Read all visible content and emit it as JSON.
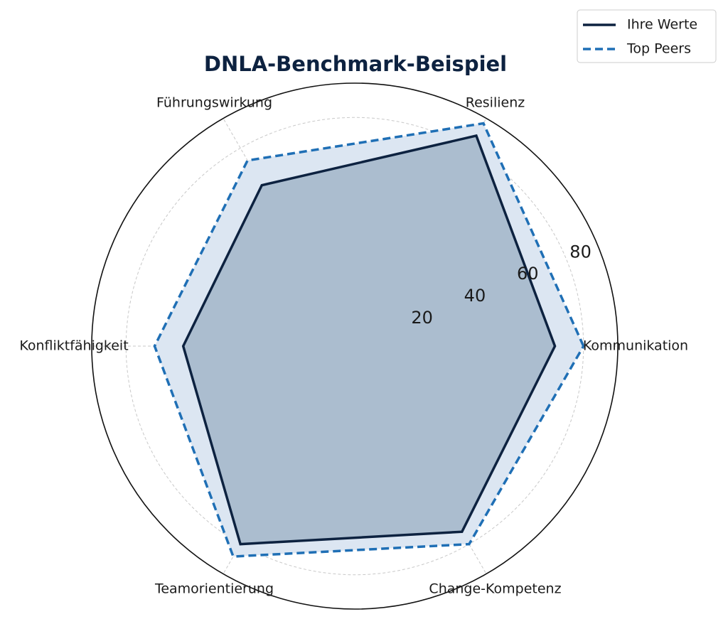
{
  "chart_data": {
    "type": "radar",
    "title": "DNLA-Benchmark-Beispiel",
    "categories": [
      "Kommunikation",
      "Resilienz",
      "Führungswirkung",
      "Konfliktfähigkeit",
      "Teamorientierung",
      "Change-Kompetenz"
    ],
    "series": [
      {
        "name": "Ihre Werte",
        "color": "#0d2240",
        "line_style": "solid",
        "fill": "#8aa2b8",
        "values": [
          70,
          85,
          65,
          60,
          80,
          75
        ]
      },
      {
        "name": "Top Peers",
        "color": "#1f6fb5",
        "line_style": "dashed",
        "fill": "#dce6f2",
        "values": [
          80,
          90,
          75,
          70,
          85,
          80
        ]
      }
    ],
    "ylim": [
      0,
      92
    ],
    "yticks": [
      20,
      40,
      60,
      80
    ],
    "grid": true,
    "legend": "upper right"
  }
}
